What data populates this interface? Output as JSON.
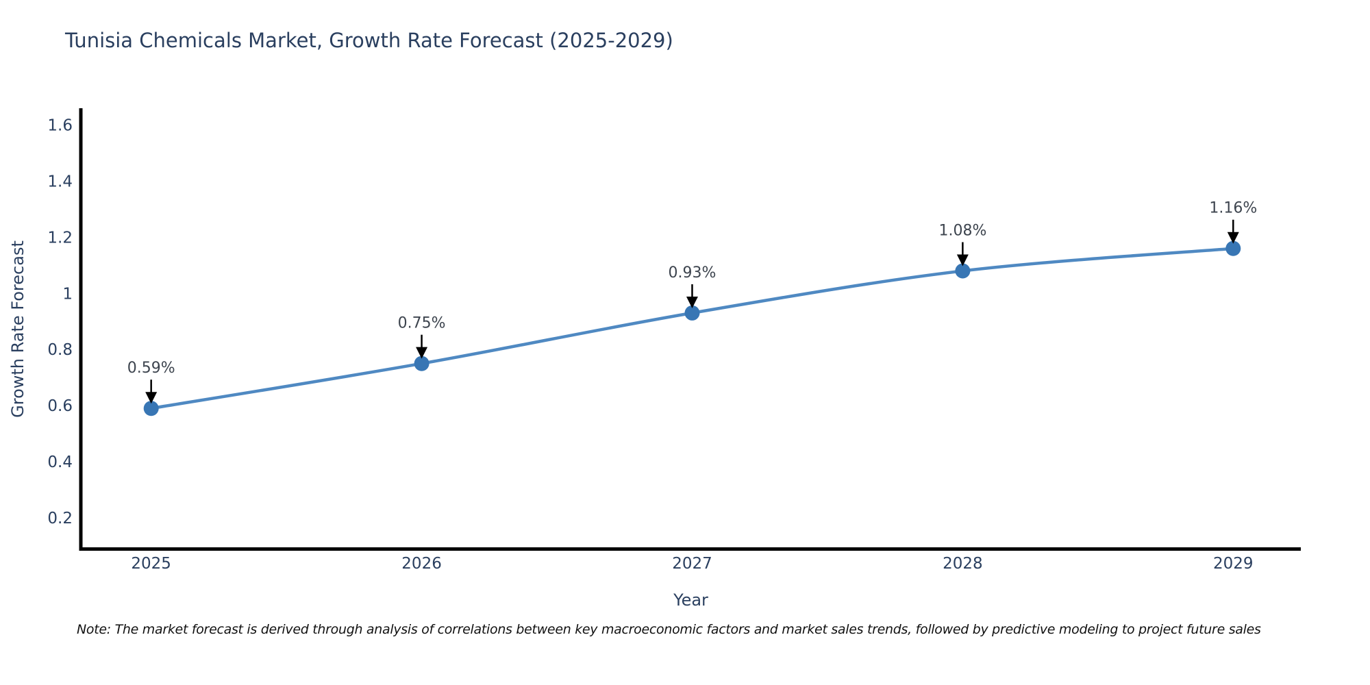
{
  "title": "Tunisia Chemicals Market, Growth Rate Forecast (2025-2029)",
  "note": "Note: The market forecast is derived through analysis of correlations between key macroeconomic factors and market sales trends, followed by predictive modeling to project future sales",
  "colors": {
    "background": "#ffffff",
    "text": "#2a3f5f",
    "annotation_text": "#3d444e",
    "arrow": "#000000",
    "axis_line": "#000000",
    "line": "#4f89c2",
    "marker": "#3876b4"
  },
  "chart_data": {
    "type": "line",
    "title": "Tunisia Chemicals Market, Growth Rate Forecast (2025-2029)",
    "x": [
      2025,
      2026,
      2027,
      2028,
      2029
    ],
    "y": [
      0.59,
      0.75,
      0.93,
      1.08,
      1.16
    ],
    "point_labels": [
      "0.59%",
      "0.75%",
      "0.93%",
      "1.08%",
      "1.16%"
    ],
    "x_tick_labels": [
      "2025",
      "2026",
      "2027",
      "2028",
      "2029"
    ],
    "y_ticks": [
      0.2,
      0.4,
      0.6,
      0.8,
      1,
      1.2,
      1.4,
      1.6
    ],
    "y_tick_labels": [
      "0.2",
      "0.4",
      "0.6",
      "0.8",
      "1",
      "1.2",
      "1.4",
      "1.6"
    ],
    "xlabel": "Year",
    "ylabel": "Growth Rate Forecast",
    "xlim": [
      2024.74,
      2029.25
    ],
    "ylim": [
      0.09,
      1.655
    ],
    "grid": false,
    "legend": false,
    "line_shape": "spline",
    "marker_size": 11
  }
}
